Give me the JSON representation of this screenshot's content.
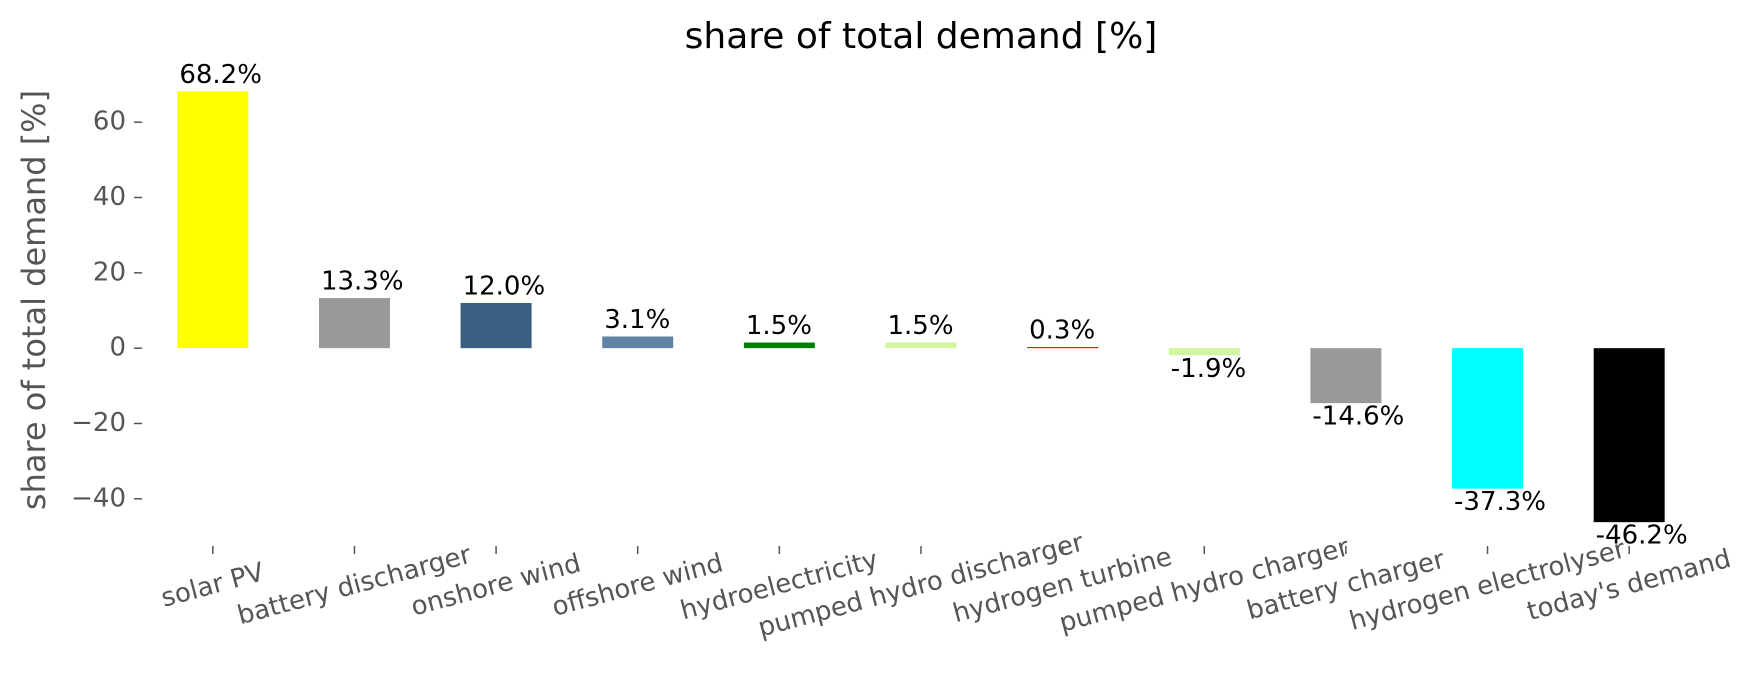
{
  "chart_data": {
    "type": "bar",
    "title": "share of total demand [%]",
    "y_label": "share of total demand [%]",
    "categories": [
      "solar PV",
      "battery discharger",
      "onshore wind",
      "offshore wind",
      "hydroelectricity",
      "pumped hydro discharger",
      "hydrogen turbine",
      "pumped hydro charger",
      "battery charger",
      "hydrogen electrolyser",
      "today's demand"
    ],
    "values": [
      68.2,
      13.3,
      12.0,
      3.1,
      1.5,
      1.5,
      0.3,
      -1.9,
      -14.6,
      -37.3,
      -46.2
    ],
    "value_labels": [
      "68.2%",
      "13.3%",
      "12.0%",
      "3.1%",
      "1.5%",
      "1.5%",
      "0.3%",
      "-1.9%",
      "-14.6%",
      "-37.3%",
      "-46.2%"
    ],
    "colors": [
      "#ffff00",
      "#999999",
      "#3a5f82",
      "#5f82a5",
      "#008000",
      "#d4f5a0",
      "#ff0000",
      "#d4f5a0",
      "#999999",
      "#00ffff",
      "#000000"
    ],
    "ylim": [
      -52,
      72
    ],
    "yticks": [
      {
        "value": -40,
        "label": "−40"
      },
      {
        "value": -20,
        "label": "−20"
      },
      0,
      20,
      40,
      60
    ],
    "grid": false
  }
}
